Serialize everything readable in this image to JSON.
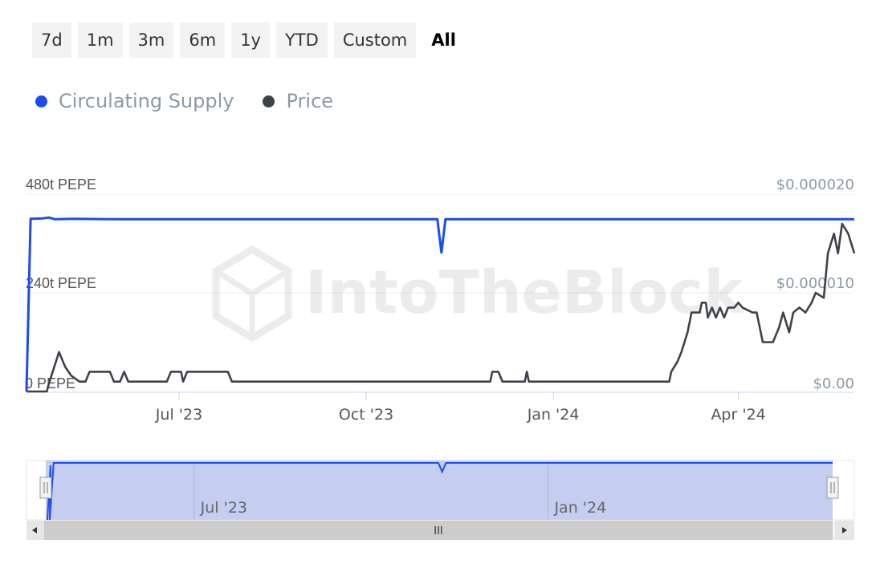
{
  "range_buttons": [
    {
      "label": "7d",
      "active": false
    },
    {
      "label": "1m",
      "active": false
    },
    {
      "label": "3m",
      "active": false
    },
    {
      "label": "6m",
      "active": false
    },
    {
      "label": "1y",
      "active": false
    },
    {
      "label": "YTD",
      "active": false
    },
    {
      "label": "Custom",
      "active": false
    },
    {
      "label": "All",
      "active": true
    }
  ],
  "legend": [
    {
      "label": "Circulating Supply",
      "color": "#1a4cf0"
    },
    {
      "label": "Price",
      "color": "#3e4349"
    }
  ],
  "watermark": "IntoTheBlock",
  "navigator": {
    "x_ticks": [
      {
        "label": "Jul '23",
        "date": "2023-07-01"
      },
      {
        "label": "Jan '24",
        "date": "2024-01-01"
      }
    ],
    "scroll_grip": "III",
    "scroll_left_icon": "arrow-left-icon",
    "scroll_right_icon": "arrow-right-icon",
    "handle_icon": "drag-handle-icon"
  },
  "chart_data": {
    "type": "line",
    "x_range": [
      "2023-04-17",
      "2024-05-28"
    ],
    "x_ticks": [
      {
        "label": "Jul '23",
        "date": "2023-07-01"
      },
      {
        "label": "Oct '23",
        "date": "2023-10-01"
      },
      {
        "label": "Jan '24",
        "date": "2024-01-01"
      },
      {
        "label": "Apr '24",
        "date": "2024-04-01"
      }
    ],
    "y_left": {
      "ticks": [
        {
          "label": "0 PEPE",
          "value": 0
        },
        {
          "label": "240t PEPE",
          "value": 240
        },
        {
          "label": "480t PEPE",
          "value": 480
        }
      ],
      "range": [
        0,
        480
      ],
      "unit": "trillion PEPE"
    },
    "y_right": {
      "ticks": [
        {
          "label": "$0.00",
          "value": 0
        },
        {
          "label": "$0.000010",
          "value": 1e-05
        },
        {
          "label": "$0.000020",
          "value": 2e-05
        }
      ],
      "range": [
        0,
        2e-05
      ]
    },
    "grid": true,
    "series": [
      {
        "name": "Circulating Supply",
        "axis": "left",
        "color": "#1a4cf0",
        "points": [
          [
            "2023-04-17",
            0
          ],
          [
            "2023-04-19",
            420
          ],
          [
            "2023-04-25",
            421
          ],
          [
            "2023-04-28",
            423
          ],
          [
            "2023-05-01",
            419
          ],
          [
            "2023-05-10",
            420
          ],
          [
            "2023-06-01",
            419
          ],
          [
            "2023-07-01",
            419
          ],
          [
            "2023-08-01",
            419
          ],
          [
            "2023-09-01",
            419
          ],
          [
            "2023-10-01",
            419
          ],
          [
            "2023-11-01",
            419
          ],
          [
            "2023-11-05",
            419
          ],
          [
            "2023-11-07",
            338
          ],
          [
            "2023-11-09",
            419
          ],
          [
            "2023-12-01",
            419
          ],
          [
            "2024-01-01",
            419
          ],
          [
            "2024-02-01",
            419
          ],
          [
            "2024-03-01",
            419
          ],
          [
            "2024-04-01",
            419
          ],
          [
            "2024-05-01",
            419
          ],
          [
            "2024-05-28",
            419
          ]
        ]
      },
      {
        "name": "Price",
        "axis": "right",
        "color": "#3e4349",
        "points": [
          [
            "2023-04-17",
            0.0
          ],
          [
            "2023-04-27",
            0.0
          ],
          [
            "2023-04-28",
            8e-07
          ],
          [
            "2023-05-03",
            4e-06
          ],
          [
            "2023-05-06",
            2.5e-06
          ],
          [
            "2023-05-09",
            1.6e-06
          ],
          [
            "2023-05-13",
            1e-06
          ],
          [
            "2023-05-16",
            1e-06
          ],
          [
            "2023-05-18",
            2e-06
          ],
          [
            "2023-05-28",
            2e-06
          ],
          [
            "2023-05-30",
            1e-06
          ],
          [
            "2023-06-02",
            1e-06
          ],
          [
            "2023-06-04",
            2e-06
          ],
          [
            "2023-06-06",
            1e-06
          ],
          [
            "2023-06-25",
            1e-06
          ],
          [
            "2023-06-27",
            2e-06
          ],
          [
            "2023-07-02",
            2e-06
          ],
          [
            "2023-07-03",
            1e-06
          ],
          [
            "2023-07-05",
            2e-06
          ],
          [
            "2023-07-25",
            2e-06
          ],
          [
            "2023-07-27",
            1e-06
          ],
          [
            "2023-12-01",
            1e-06
          ],
          [
            "2023-12-02",
            2e-06
          ],
          [
            "2023-12-05",
            2e-06
          ],
          [
            "2023-12-07",
            1e-06
          ],
          [
            "2023-12-18",
            1e-06
          ],
          [
            "2023-12-19",
            2e-06
          ],
          [
            "2023-12-20",
            1e-06
          ],
          [
            "2024-02-27",
            1e-06
          ],
          [
            "2024-02-28",
            2e-06
          ],
          [
            "2024-03-02",
            3e-06
          ],
          [
            "2024-03-04",
            4e-06
          ],
          [
            "2024-03-07",
            6e-06
          ],
          [
            "2024-03-09",
            8e-06
          ],
          [
            "2024-03-13",
            8e-06
          ],
          [
            "2024-03-14",
            9e-06
          ],
          [
            "2024-03-16",
            9e-06
          ],
          [
            "2024-03-17",
            7.5e-06
          ],
          [
            "2024-03-19",
            8.5e-06
          ],
          [
            "2024-03-21",
            7.5e-06
          ],
          [
            "2024-03-23",
            8.5e-06
          ],
          [
            "2024-03-25",
            7.5e-06
          ],
          [
            "2024-03-27",
            8.5e-06
          ],
          [
            "2024-03-30",
            8.5e-06
          ],
          [
            "2024-04-01",
            9e-06
          ],
          [
            "2024-04-03",
            8.5e-06
          ],
          [
            "2024-04-08",
            8e-06
          ],
          [
            "2024-04-10",
            8e-06
          ],
          [
            "2024-04-13",
            5e-06
          ],
          [
            "2024-04-18",
            5e-06
          ],
          [
            "2024-04-21",
            6.5e-06
          ],
          [
            "2024-04-23",
            8e-06
          ],
          [
            "2024-04-26",
            6e-06
          ],
          [
            "2024-04-28",
            8e-06
          ],
          [
            "2024-05-01",
            8.5e-06
          ],
          [
            "2024-05-04",
            8e-06
          ],
          [
            "2024-05-07",
            9e-06
          ],
          [
            "2024-05-09",
            1e-05
          ],
          [
            "2024-05-13",
            9.5e-06
          ],
          [
            "2024-05-15",
            1.4e-05
          ],
          [
            "2024-05-18",
            1.6e-05
          ],
          [
            "2024-05-20",
            1.4e-05
          ],
          [
            "2024-05-22",
            1.7e-05
          ],
          [
            "2024-05-25",
            1.6e-05
          ],
          [
            "2024-05-28",
            1.4e-05
          ]
        ]
      }
    ]
  }
}
